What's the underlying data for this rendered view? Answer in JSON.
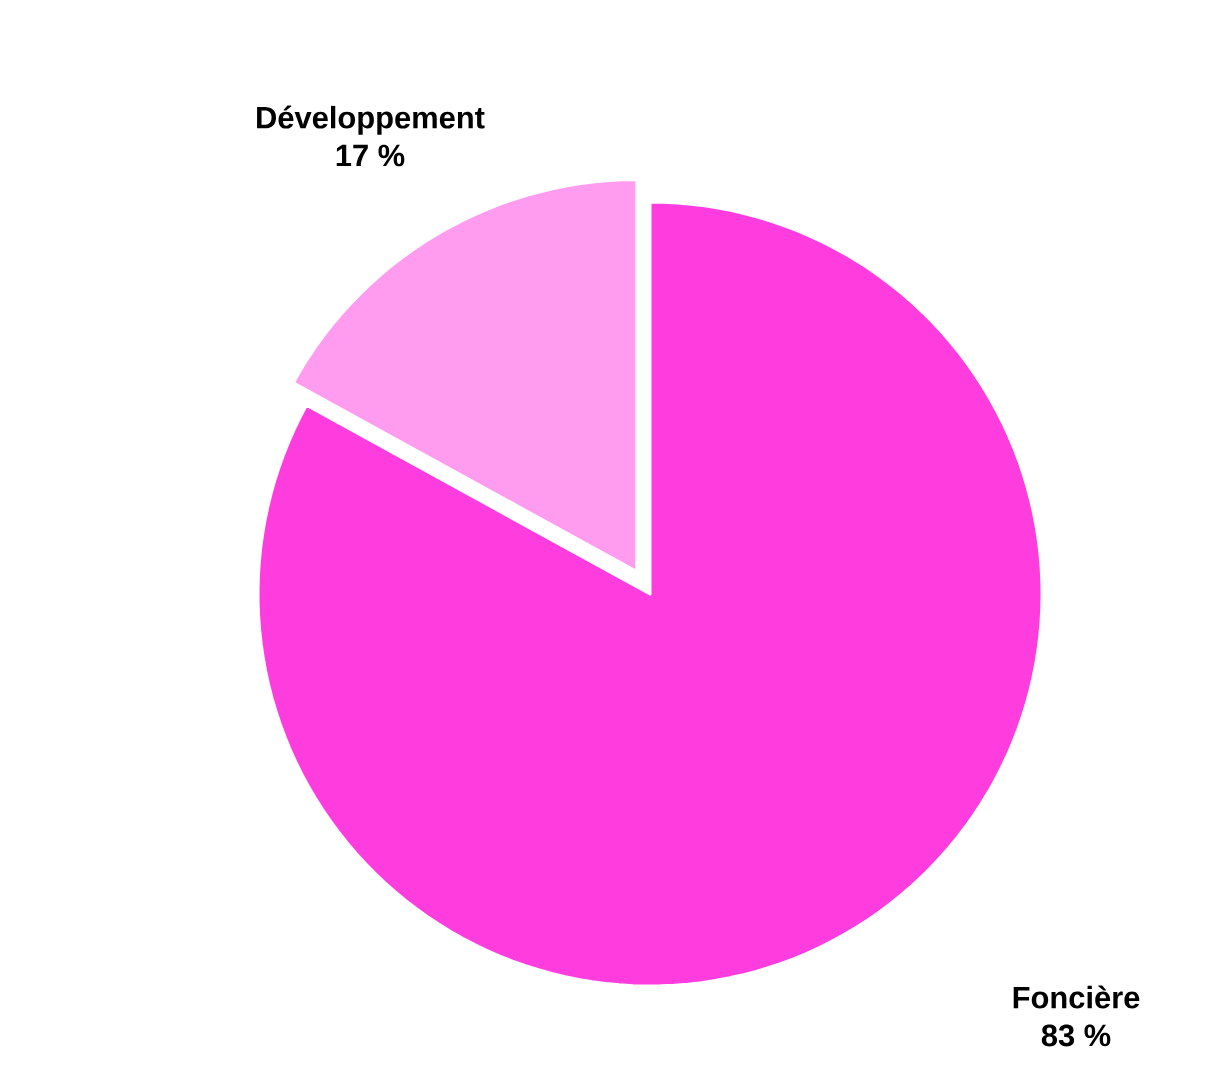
{
  "chart_data": {
    "type": "pie",
    "categories": [
      "Foncière",
      "Développement"
    ],
    "values": [
      83,
      17
    ],
    "colors": [
      "#ff3ddf",
      "#ff9cf0"
    ],
    "value_labels": [
      "83 %",
      "17 %"
    ]
  }
}
